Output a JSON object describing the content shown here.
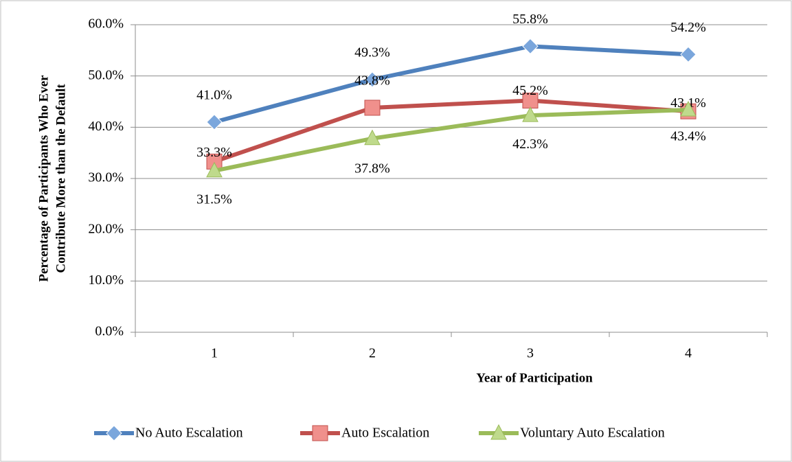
{
  "chart_data": {
    "type": "line",
    "ylabel": [
      "Percentage of Participants Who Ever",
      "Contribute More than the Default"
    ],
    "xlabel": "Year of Participation",
    "categories": [
      "1",
      "2",
      "3",
      "4"
    ],
    "ylim": [
      0,
      60
    ],
    "yticks": [
      {
        "value": 0,
        "label": "0.0%"
      },
      {
        "value": 10,
        "label": "10.0%"
      },
      {
        "value": 20,
        "label": "20.0%"
      },
      {
        "value": 30,
        "label": "30.0%"
      },
      {
        "value": 40,
        "label": "40.0%"
      },
      {
        "value": 50,
        "label": "50.0%"
      },
      {
        "value": 60,
        "label": "60.0%"
      }
    ],
    "grid": true,
    "legend": "bottom",
    "series": [
      {
        "name": "No Auto Escalation",
        "color": "#4f81bd",
        "marker": "diamond",
        "values": [
          41.0,
          49.3,
          55.8,
          54.2
        ],
        "value_labels": [
          "41.0%",
          "49.3%",
          "55.8%",
          "54.2%"
        ]
      },
      {
        "name": "Auto Escalation",
        "color": "#c0504d",
        "marker": "square",
        "values": [
          33.3,
          43.8,
          45.2,
          43.1
        ],
        "value_labels": [
          "33.3%",
          "43.8%",
          "45.2%",
          "43.1%"
        ]
      },
      {
        "name": "Voluntary Auto Escalation",
        "color": "#9bbb59",
        "marker": "triangle",
        "values": [
          31.5,
          37.8,
          42.3,
          43.4
        ],
        "value_labels": [
          "31.5%",
          "37.8%",
          "42.3%",
          "43.4%"
        ]
      }
    ]
  }
}
